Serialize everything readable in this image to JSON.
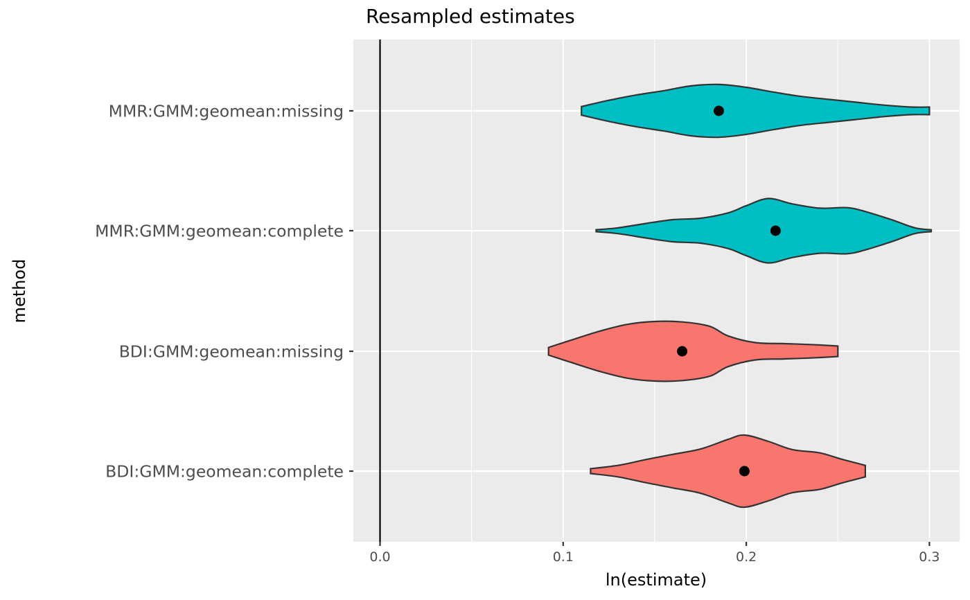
{
  "chart_data": {
    "type": "violin",
    "title": "Resampled estimates",
    "xlabel": "ln(estimate)",
    "ylabel": "method",
    "xlim": [
      -0.015,
      0.315
    ],
    "xticks": [
      0.0,
      0.1,
      0.2,
      0.3
    ],
    "xtick_labels": [
      "0.0",
      "0.1",
      "0.2",
      "0.3"
    ],
    "reference_line_x": 0,
    "grid": true,
    "legend": "none",
    "colors": {
      "cyan": "#00BFC4",
      "salmon": "#F8766D",
      "panel": "#EBEBEB",
      "grid": "#FFFFFF",
      "outline": "#333333",
      "point": "#000000"
    },
    "categories": [
      "MMR:GMM:geomean:missing",
      "MMR:GMM:geomean:complete",
      "BDI:GMM:geomean:missing",
      "BDI:GMM:geomean:complete"
    ],
    "series": [
      {
        "category": "MMR:GMM:geomean:missing",
        "color": "#00BFC4",
        "point_estimate": 0.185,
        "density": [
          [
            0.11,
            0.09
          ],
          [
            0.125,
            0.22
          ],
          [
            0.14,
            0.33
          ],
          [
            0.155,
            0.42
          ],
          [
            0.17,
            0.52
          ],
          [
            0.185,
            0.55
          ],
          [
            0.2,
            0.49
          ],
          [
            0.215,
            0.39
          ],
          [
            0.23,
            0.3
          ],
          [
            0.245,
            0.24
          ],
          [
            0.26,
            0.18
          ],
          [
            0.275,
            0.12
          ],
          [
            0.29,
            0.08
          ],
          [
            0.3,
            0.08
          ]
        ]
      },
      {
        "category": "MMR:GMM:geomean:complete",
        "color": "#00BFC4",
        "point_estimate": 0.216,
        "density": [
          [
            0.118,
            0.02
          ],
          [
            0.13,
            0.06
          ],
          [
            0.145,
            0.15
          ],
          [
            0.16,
            0.23
          ],
          [
            0.175,
            0.26
          ],
          [
            0.19,
            0.37
          ],
          [
            0.2,
            0.52
          ],
          [
            0.212,
            0.67
          ],
          [
            0.225,
            0.56
          ],
          [
            0.24,
            0.47
          ],
          [
            0.255,
            0.48
          ],
          [
            0.265,
            0.4
          ],
          [
            0.28,
            0.22
          ],
          [
            0.292,
            0.06
          ],
          [
            0.301,
            0.02
          ]
        ]
      },
      {
        "category": "BDI:GMM:geomean:missing",
        "color": "#F8766D",
        "point_estimate": 0.165,
        "density": [
          [
            0.092,
            0.08
          ],
          [
            0.105,
            0.24
          ],
          [
            0.12,
            0.42
          ],
          [
            0.135,
            0.56
          ],
          [
            0.15,
            0.62
          ],
          [
            0.165,
            0.61
          ],
          [
            0.18,
            0.52
          ],
          [
            0.19,
            0.32
          ],
          [
            0.205,
            0.18
          ],
          [
            0.22,
            0.16
          ],
          [
            0.235,
            0.14
          ],
          [
            0.25,
            0.11
          ]
        ]
      },
      {
        "category": "BDI:GMM:geomean:complete",
        "color": "#F8766D",
        "point_estimate": 0.199,
        "density": [
          [
            0.115,
            0.05
          ],
          [
            0.13,
            0.12
          ],
          [
            0.145,
            0.24
          ],
          [
            0.16,
            0.35
          ],
          [
            0.175,
            0.46
          ],
          [
            0.19,
            0.66
          ],
          [
            0.199,
            0.75
          ],
          [
            0.212,
            0.62
          ],
          [
            0.225,
            0.45
          ],
          [
            0.24,
            0.38
          ],
          [
            0.252,
            0.25
          ],
          [
            0.265,
            0.12
          ]
        ]
      }
    ]
  }
}
